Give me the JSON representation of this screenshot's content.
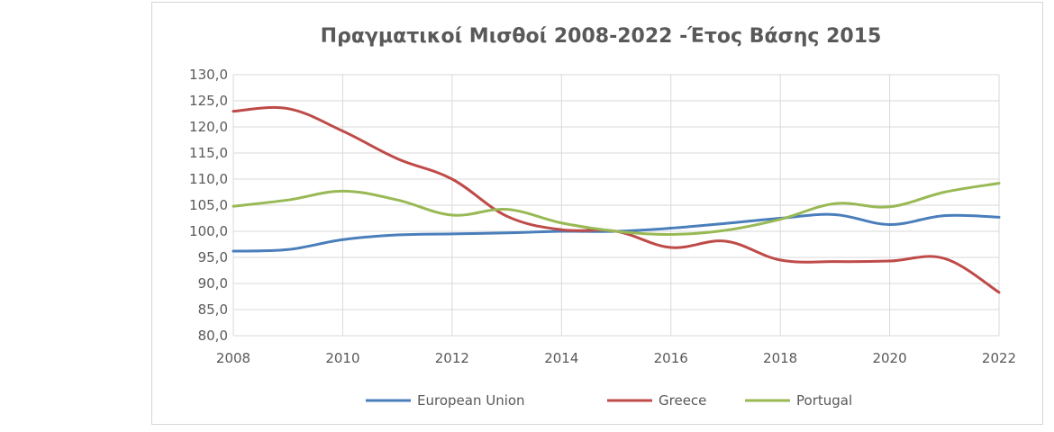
{
  "chart_data": {
    "type": "line",
    "title": "Πραγματικοί Μισθοί 2008-2022 -Έτος Βάσης 2015",
    "xlabel": "",
    "ylabel": "",
    "x": [
      2008,
      2009,
      2010,
      2011,
      2012,
      2013,
      2014,
      2015,
      2016,
      2017,
      2018,
      2019,
      2020,
      2021,
      2022
    ],
    "xlim": [
      2008,
      2022
    ],
    "ylim": [
      80,
      130
    ],
    "x_ticks": [
      "2008",
      "2010",
      "2012",
      "2014",
      "2016",
      "2018",
      "2020",
      "2022"
    ],
    "y_ticks": [
      "80,0",
      "85,0",
      "90,0",
      "95,0",
      "100,0",
      "105,0",
      "110,0",
      "115,0",
      "120,0",
      "125,0",
      "130,0"
    ],
    "grid": true,
    "legend_position": "bottom",
    "series": [
      {
        "name": "European Union",
        "color": "#4a7ebb",
        "values": [
          96.2,
          96.5,
          98.4,
          99.3,
          99.5,
          99.7,
          100.0,
          100.0,
          100.6,
          101.5,
          102.5,
          103.2,
          101.3,
          103.0,
          102.7
        ]
      },
      {
        "name": "Greece",
        "color": "#be4b48",
        "values": [
          123.0,
          123.5,
          119.2,
          113.9,
          110.0,
          102.9,
          100.3,
          100.0,
          96.9,
          98.1,
          94.5,
          94.2,
          94.3,
          94.8,
          88.3
        ]
      },
      {
        "name": "Portugal",
        "color": "#98b954",
        "values": [
          104.8,
          106.0,
          107.7,
          106.0,
          103.1,
          104.2,
          101.6,
          100.0,
          99.4,
          100.2,
          102.3,
          105.3,
          104.7,
          107.5,
          109.2
        ]
      }
    ]
  }
}
